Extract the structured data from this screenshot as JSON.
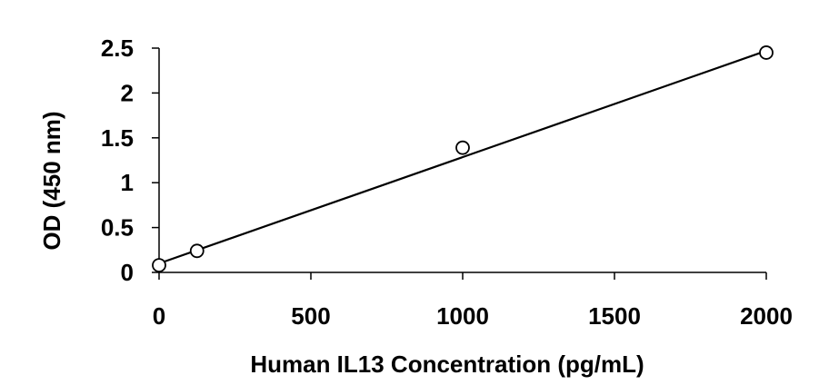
{
  "chart_data": {
    "type": "scatter",
    "title": "",
    "xlabel": "Human IL13 Concentration (pg/mL)",
    "ylabel": "OD (450 nm)",
    "xlim": [
      0,
      2000
    ],
    "ylim": [
      0,
      2.5
    ],
    "x_ticks": [
      0,
      500,
      1000,
      1500,
      2000
    ],
    "y_ticks": [
      0,
      0.5,
      1,
      1.5,
      2,
      2.5
    ],
    "x_tick_labels": [
      "0",
      "500",
      "1000",
      "1500",
      "2000"
    ],
    "y_tick_labels": [
      "0",
      "0.5",
      "1",
      "1.5",
      "2",
      "2.5"
    ],
    "grid": false,
    "legend": "none",
    "series": [
      {
        "marker": "open-circle",
        "x": [
          0,
          125,
          1000,
          2000
        ],
        "y": [
          0.08,
          0.24,
          1.39,
          2.45
        ]
      }
    ],
    "trendline": {
      "type": "linear",
      "x": [
        0,
        2000
      ],
      "y": [
        0.1,
        2.47
      ]
    }
  }
}
